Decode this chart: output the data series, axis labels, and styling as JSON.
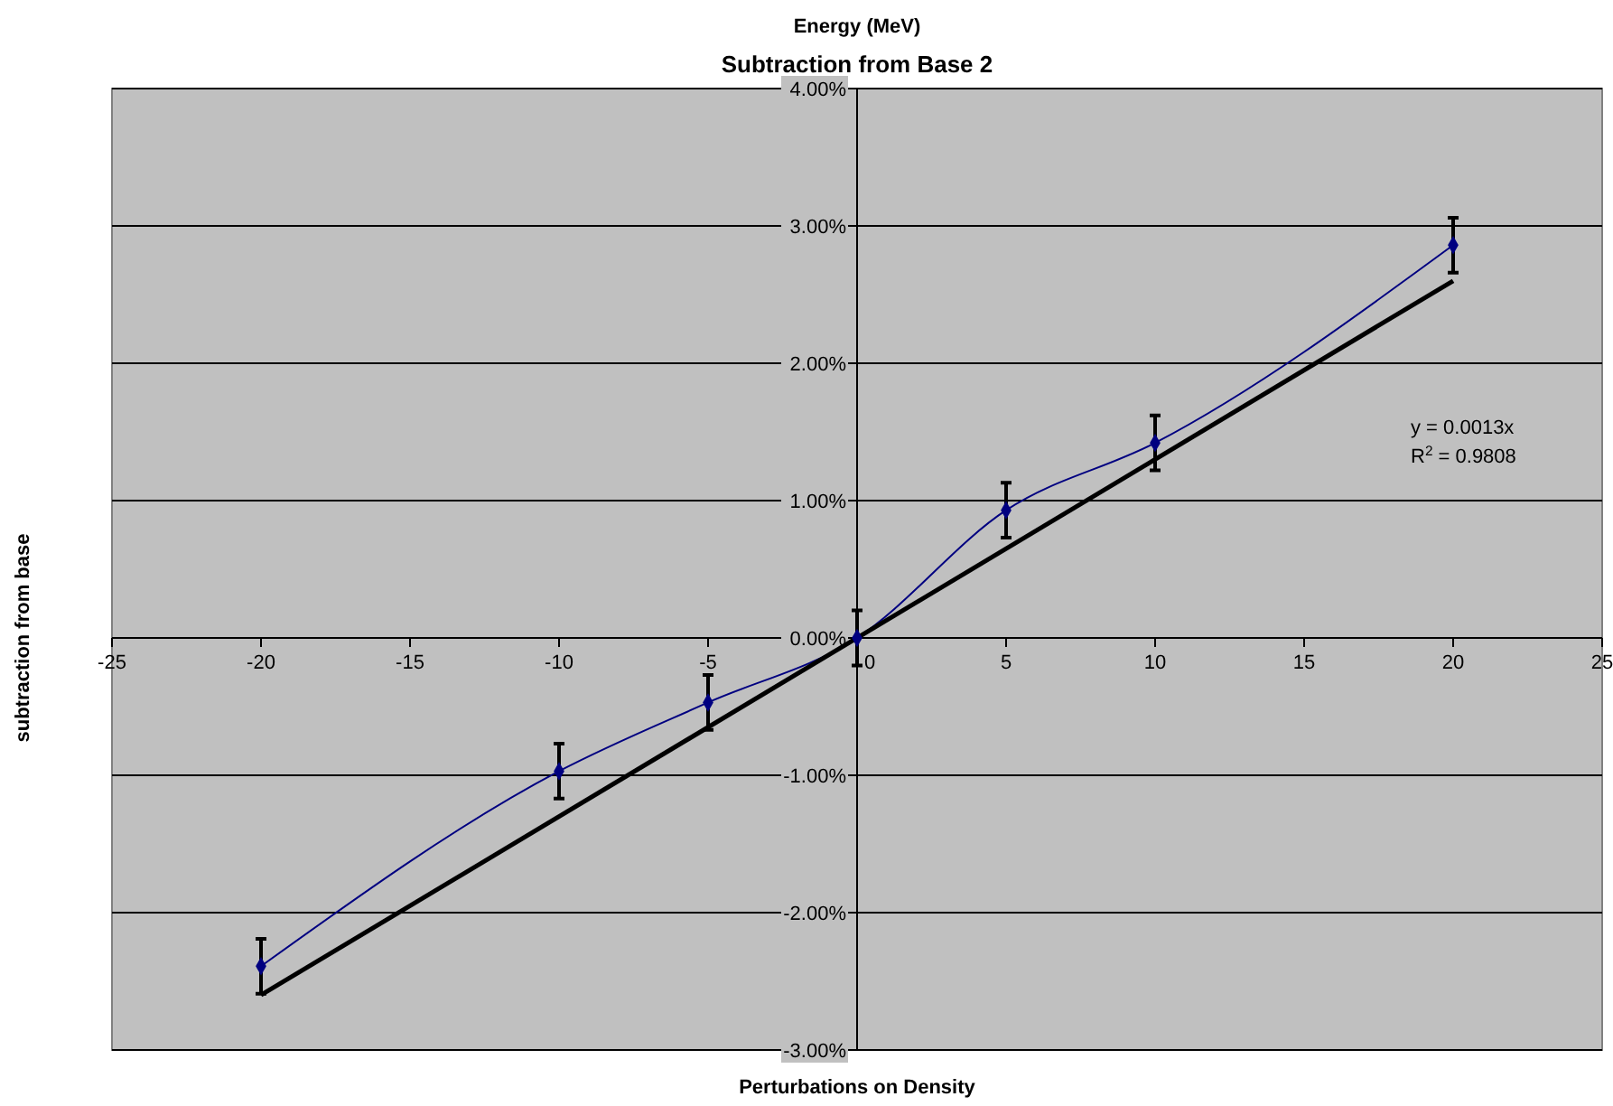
{
  "chart_data": {
    "type": "line",
    "title": "Energy (MeV)",
    "subtitle": "Subtraction from Base 2",
    "xlabel": "Perturbations on Density",
    "ylabel": "subtraction from base",
    "x": [
      -20,
      -10,
      -5,
      0,
      5,
      10,
      20
    ],
    "series": [
      {
        "color": "#000080",
        "marker": "diamond",
        "values": [
          -2.39,
          -0.97,
          -0.47,
          0,
          0.93,
          1.42,
          2.86
        ],
        "errors": [
          0.2,
          0.2,
          0.2,
          0.2,
          0.2,
          0.2,
          0.2
        ]
      },
      {
        "color": "#000000",
        "marker": "none",
        "x": [
          -20,
          20
        ],
        "values": [
          -2.6,
          2.6
        ]
      }
    ],
    "xlim": [
      -25,
      25
    ],
    "xticks": [
      -25,
      -20,
      -15,
      -10,
      -5,
      0,
      5,
      10,
      15,
      20,
      25
    ],
    "ylim": [
      -3,
      4
    ],
    "yticks": [
      {
        "value": -3,
        "label": "-3.00%"
      },
      {
        "value": -2,
        "label": "-2.00%"
      },
      {
        "value": -1,
        "label": "-1.00%"
      },
      {
        "value": 0,
        "label": "0.00%"
      },
      {
        "value": 1,
        "label": "1.00%"
      },
      {
        "value": 2,
        "label": "2.00%"
      },
      {
        "value": 3,
        "label": "3.00%"
      },
      {
        "value": 4,
        "label": "4.00%"
      }
    ],
    "grid": "y",
    "annotations": [
      "y = 0.0013x",
      "R$^{2}$ = 0.9808"
    ]
  }
}
